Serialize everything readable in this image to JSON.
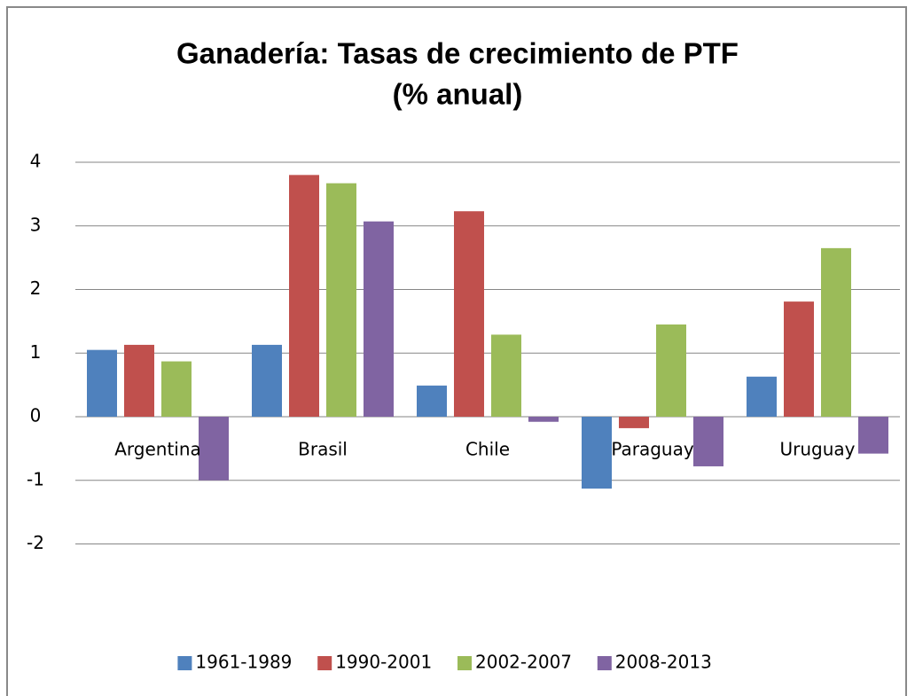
{
  "chart_data": {
    "type": "bar",
    "title": [
      "Ganadería: Tasas de crecimiento de PTF",
      "(% anual)"
    ],
    "categories": [
      "Argentina",
      "Brasil",
      "Chile",
      "Paraguay",
      "Uruguay"
    ],
    "series": [
      {
        "name": "1961-1989",
        "color": "#4f81bd",
        "values": [
          1.05,
          1.13,
          0.49,
          -1.13,
          0.63
        ]
      },
      {
        "name": "1990-2001",
        "color": "#c0504d",
        "values": [
          1.13,
          3.8,
          3.23,
          -0.18,
          1.81
        ]
      },
      {
        "name": "2002-2007",
        "color": "#9bbb59",
        "values": [
          0.87,
          3.67,
          1.29,
          1.45,
          2.65
        ]
      },
      {
        "name": "2008-2013",
        "color": "#8064a2",
        "values": [
          -1.0,
          3.07,
          -0.08,
          -0.78,
          -0.58
        ]
      }
    ],
    "ylim": [
      -2,
      4
    ],
    "yticks": [
      -2,
      -1,
      0,
      1,
      2,
      3,
      4
    ],
    "grid": true,
    "legend": "bottom"
  }
}
